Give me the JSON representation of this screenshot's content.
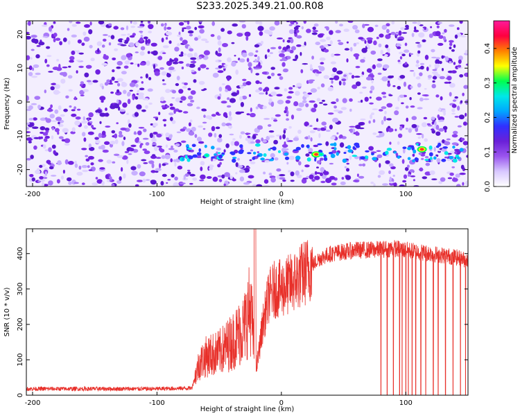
{
  "title": "S233.2025.349.21.00.R08",
  "colors": {
    "trace": "#e8302a",
    "frame": "#000000"
  },
  "chart_data": [
    {
      "type": "heatmap",
      "xlabel": "Height of straight line (km)",
      "ylabel": "Frequency (Hz)",
      "xlim": [
        -205,
        150
      ],
      "ylim": [
        -25,
        24
      ],
      "xticks": [
        -200,
        -100,
        0,
        100
      ],
      "yticks": [
        -20,
        -10,
        0,
        10,
        20
      ],
      "colorbar": {
        "label": "Normalized spectral amplitude",
        "range": [
          0,
          0.48
        ],
        "ticks": [
          0.0,
          0.1,
          0.2,
          0.3,
          0.4
        ],
        "colormap": [
          "#ffffff",
          "#d8c8ff",
          "#9a55ee",
          "#6a20d8",
          "#3030ff",
          "#00a8ff",
          "#00e8e8",
          "#00ff50",
          "#ffff00",
          "#ff8000",
          "#ff0040",
          "#ff1a9a"
        ]
      },
      "features": [
        {
          "x": 28,
          "y": -15.5,
          "value": 0.42
        },
        {
          "x": 113,
          "y": -14,
          "value": 0.45
        },
        {
          "x": 32,
          "y": -15.5,
          "value": 0.22
        },
        {
          "x": -60,
          "y": -15.8,
          "value": 0.15
        }
      ]
    },
    {
      "type": "line",
      "xlabel": "Height of straight line (km)",
      "ylabel": "SNR (10 * v/v)",
      "xlim": [
        -205,
        150
      ],
      "ylim": [
        0,
        470
      ],
      "xticks": [
        -200,
        -100,
        0,
        100
      ],
      "yticks": [
        0,
        100,
        200,
        300,
        400
      ],
      "series": [
        {
          "color": "#e8302a",
          "envelope_x": [
            -205,
            -150,
            -100,
            -72,
            -70,
            -66,
            -60,
            -50,
            -40,
            -30,
            -25,
            -20,
            -15,
            -10,
            -5,
            0,
            10,
            20,
            30,
            40,
            50,
            60,
            70,
            80,
            90,
            100,
            110,
            120,
            130,
            140,
            150
          ],
          "envelope_y": [
            18,
            18,
            18,
            20,
            45,
            90,
            110,
            120,
            150,
            190,
            250,
            75,
            200,
            280,
            300,
            300,
            320,
            350,
            385,
            400,
            405,
            410,
            410,
            412,
            415,
            410,
            405,
            400,
            395,
            390,
            380
          ],
          "dropouts": [
            80,
            85,
            90,
            95,
            97,
            100,
            102,
            105,
            108,
            112,
            116,
            122,
            126,
            132,
            138,
            144,
            148
          ]
        }
      ]
    }
  ]
}
